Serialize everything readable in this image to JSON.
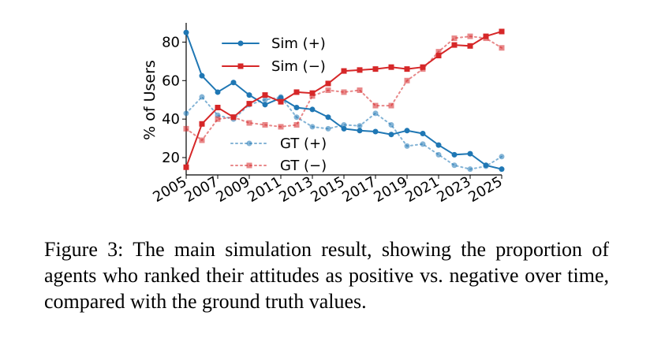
{
  "chart_data": {
    "type": "line",
    "title": "",
    "xlabel": "",
    "ylabel": "% of Users",
    "x": [
      2005,
      2006,
      2007,
      2008,
      2009,
      2010,
      2011,
      2012,
      2013,
      2014,
      2015,
      2016,
      2017,
      2018,
      2019,
      2020,
      2021,
      2022,
      2023,
      2024,
      2025
    ],
    "xticks": [
      "2005",
      "2007",
      "2009",
      "2011",
      "2013",
      "2015",
      "2017",
      "2019",
      "2021",
      "2023",
      "2025"
    ],
    "yticks": [
      "20",
      "40",
      "60",
      "80"
    ],
    "xlim": [
      2005,
      2025
    ],
    "ylim": [
      11,
      90
    ],
    "grid": false,
    "legend_position": "upper left",
    "series": [
      {
        "name": "Sim (+)",
        "marker": "circle",
        "style": "solid",
        "color": "#1f77b4",
        "values": [
          85,
          62.5,
          54,
          59,
          52.5,
          47.5,
          51,
          46,
          45,
          41,
          35,
          34,
          33.5,
          32,
          34,
          32.5,
          26.5,
          21.5,
          22,
          16,
          14
        ]
      },
      {
        "name": "Sim (−)",
        "marker": "square",
        "style": "solid",
        "color": "#d62728",
        "values": [
          15,
          37.5,
          46,
          41,
          48,
          52.5,
          49,
          54,
          53.5,
          58.5,
          65,
          65.5,
          66,
          67,
          66,
          67,
          73,
          78.5,
          78,
          83,
          85.5
        ]
      },
      {
        "name": "GT (+)",
        "marker": "circle",
        "style": "dotted",
        "color": "#1f77b4",
        "values": [
          43,
          51.5,
          42,
          40,
          47.5,
          50,
          51.5,
          41,
          36,
          35,
          37,
          36.5,
          43,
          37,
          26,
          27,
          21.5,
          16,
          14,
          15.5,
          20.5
        ]
      },
      {
        "name": "GT (−)",
        "marker": "square",
        "style": "dotted",
        "color": "#d62728",
        "values": [
          35,
          29,
          40,
          41,
          38,
          37,
          36,
          37,
          52,
          55,
          54,
          55,
          47,
          47,
          60,
          66,
          75,
          82,
          83,
          82,
          77
        ]
      }
    ]
  },
  "caption": "Figure 3: The main simulation result, showing the proportion of agents who ranked their attitudes as positive vs. negative over time, compared with the ground truth values."
}
